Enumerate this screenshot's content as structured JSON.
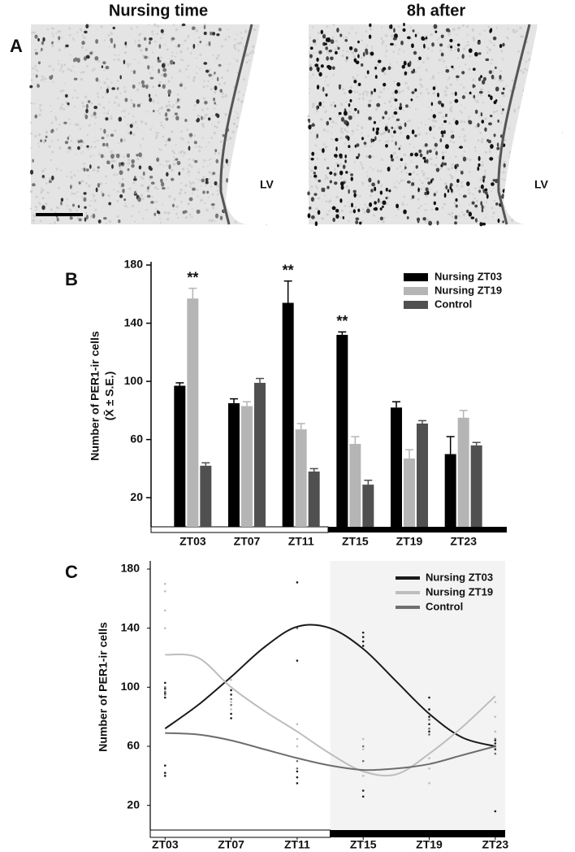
{
  "panel_a": {
    "label": "A",
    "titles": [
      "Nursing time",
      "8h after"
    ],
    "annotations": [
      "LV",
      "LV"
    ]
  },
  "chart_data": [
    {
      "type": "bar",
      "label": "B",
      "y_label": [
        "Number of PER1-ir cells",
        "(X̄ ± S.E.)"
      ],
      "categories": [
        "ZT03",
        "ZT07",
        "ZT11",
        "ZT15",
        "ZT19",
        "ZT23"
      ],
      "series": [
        {
          "name": "Nursing ZT03",
          "color": "#000000",
          "values": [
            97,
            85,
            154,
            132,
            82,
            50
          ],
          "errors": [
            2,
            3,
            15,
            2,
            4,
            12
          ]
        },
        {
          "name": "Nursing ZT19",
          "color": "#b5b5b5",
          "values": [
            157,
            83,
            67,
            57,
            47,
            75
          ],
          "errors": [
            7,
            3,
            4,
            5,
            6,
            5
          ]
        },
        {
          "name": "Control",
          "color": "#505050",
          "values": [
            42,
            99,
            38,
            29,
            71,
            56
          ],
          "errors": [
            2,
            3,
            2,
            3,
            2,
            2
          ]
        }
      ],
      "annotations": [
        {
          "text": "**",
          "series": 1,
          "index": 0
        },
        {
          "text": "**",
          "series": 0,
          "index": 2
        },
        {
          "text": "**",
          "series": 0,
          "index": 3
        }
      ],
      "ylim": [
        0,
        180
      ],
      "yticks": [
        20,
        60,
        100,
        140,
        180
      ],
      "legend": "top-right"
    },
    {
      "type": "scatter",
      "label": "C",
      "y_label": "Number of PER1-ir cells",
      "x": [
        3,
        5,
        7,
        9,
        11,
        13,
        15,
        17,
        19,
        21,
        23
      ],
      "series": [
        {
          "name": "Nursing ZT03",
          "color": "#1a1a1a",
          "values": [
            72,
            88,
            107,
            127,
            141,
            140,
            126,
            104,
            82,
            66,
            60
          ],
          "points": {
            "x": [
              3,
              3,
              3,
              3,
              3,
              3,
              3,
              7,
              7,
              7,
              7,
              11,
              11,
              11,
              11,
              11,
              15,
              15,
              15,
              15,
              15,
              15,
              19,
              19,
              19,
              19,
              19,
              23,
              23,
              23,
              23,
              23
            ],
            "y": [
              103,
              99,
              96,
              93,
              47,
              42,
              40,
              98,
              95,
              82,
              79,
              171,
              118,
              43,
              39,
              35,
              137,
              134,
              131,
              128,
              30,
              26,
              93,
              85,
              80,
              75,
              70,
              64,
              62,
              60,
              58,
              16
            ]
          }
        },
        {
          "name": "Nursing ZT19",
          "color": "#bdbdbd",
          "values": [
            122,
            120,
            100,
            84,
            70,
            55,
            43,
            41,
            55,
            73,
            94
          ],
          "points": {
            "x": [
              3,
              3,
              3,
              3,
              7,
              7,
              7,
              11,
              11,
              11,
              15,
              15,
              15,
              19,
              19,
              19,
              23,
              23,
              23
            ],
            "y": [
              170,
              165,
              152,
              140,
              105,
              90,
              85,
              75,
              65,
              60,
              65,
              58,
              40,
              52,
              45,
              35,
              90,
              80,
              70
            ]
          }
        },
        {
          "name": "Control",
          "color": "#6e6e6e",
          "values": [
            69,
            68,
            64,
            58,
            52,
            47,
            44,
            45,
            48,
            54,
            60
          ],
          "points": {
            "x": [
              3,
              3,
              3,
              7,
              7,
              11,
              11,
              11,
              15,
              15,
              19,
              19,
              19,
              23,
              23,
              23
            ],
            "y": [
              100,
              97,
              95,
              92,
              88,
              140,
              50,
              45,
              60,
              50,
              78,
              72,
              68,
              65,
              60,
              55
            ]
          }
        }
      ],
      "xlim": [
        2.1,
        23.6
      ],
      "xticks": [
        {
          "value": 3,
          "label": "ZT03"
        },
        {
          "value": 7,
          "label": "ZT07"
        },
        {
          "value": 11,
          "label": "ZT11"
        },
        {
          "value": 15,
          "label": "ZT15"
        },
        {
          "value": 19,
          "label": "ZT19"
        },
        {
          "value": 23,
          "label": "ZT23"
        }
      ],
      "ylim": [
        0,
        180
      ],
      "yticks": [
        20,
        60,
        100,
        140,
        180
      ],
      "legend": "top-right"
    }
  ]
}
